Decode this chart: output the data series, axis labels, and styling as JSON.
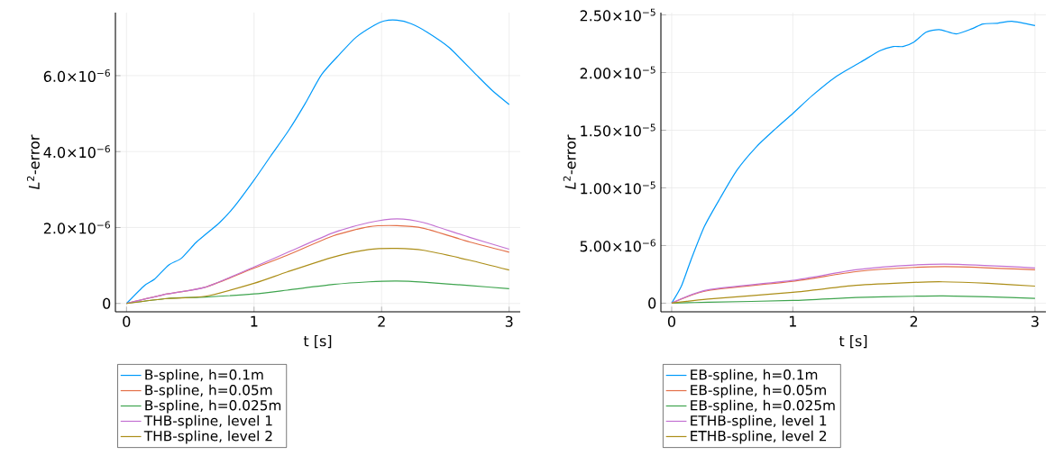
{
  "chart_data": [
    {
      "type": "line",
      "xlabel": "t [s]",
      "ylabel": "*L*$^{2}$-error",
      "xlim": [
        -0.087,
        3.087
      ],
      "ylim": [
        -2.2e-07,
        7.66e-06
      ],
      "xticks": [
        0,
        1,
        2,
        3
      ],
      "yticks": [
        {
          "value": 0,
          "label": "0"
        },
        {
          "value": 2e-06,
          "label": "2.0×10$^{−6}$"
        },
        {
          "value": 4e-06,
          "label": "4.0×10$^{−6}$"
        },
        {
          "value": 6e-06,
          "label": "6.0×10$^{−6}$"
        }
      ],
      "grid": true,
      "legend": "bottom",
      "series": [
        {
          "name": "B-spline, h=0.1m",
          "color": "#009afa",
          "x": [
            0,
            0.14,
            0.22,
            0.33,
            0.43,
            0.54,
            0.62,
            0.73,
            0.84,
            1.0,
            1.13,
            1.27,
            1.4,
            1.53,
            1.67,
            1.8,
            1.94,
            2.02,
            2.12,
            2.23,
            2.36,
            2.53,
            2.74,
            2.87,
            3.0
          ],
          "values": [
            0,
            4.7e-07,
            6.4e-07,
            1.01e-06,
            1.19e-06,
            1.59e-06,
            1.82e-06,
            2.13e-06,
            2.53e-06,
            3.25e-06,
            3.88e-06,
            4.55e-06,
            5.26e-06,
            6.03e-06,
            6.56e-06,
            7.01e-06,
            7.32e-06,
            7.44e-06,
            7.46e-06,
            7.37e-06,
            7.14e-06,
            6.74e-06,
            6.03e-06,
            5.6e-06,
            5.24e-06
          ]
        },
        {
          "name": "B-spline, h=0.05m",
          "color": "#e36f47",
          "x": [
            0,
            0.32,
            0.62,
            1.0,
            1.26,
            1.62,
            1.9,
            2.12,
            2.33,
            2.69,
            3.0
          ],
          "values": [
            0,
            2.5e-07,
            4.3e-07,
            9.3e-07,
            1.27e-06,
            1.78e-06,
            2.02e-06,
            2.05e-06,
            1.98e-06,
            1.62e-06,
            1.35e-06
          ]
        },
        {
          "name": "B-spline, h=0.025m",
          "color": "#3ea44e",
          "x": [
            0,
            0.32,
            0.62,
            1.0,
            1.26,
            1.62,
            1.9,
            2.12,
            2.33,
            2.69,
            3.0
          ],
          "values": [
            0,
            1.3e-07,
            1.7e-07,
            2.5e-07,
            3.5e-07,
            5e-07,
            5.7e-07,
            5.9e-07,
            5.6e-07,
            4.7e-07,
            3.9e-07
          ]
        },
        {
          "name": "THB-spline, level 1",
          "color": "#c371d2",
          "x": [
            0,
            0.32,
            0.62,
            1.0,
            1.26,
            1.62,
            1.9,
            2.12,
            2.33,
            2.69,
            3.0
          ],
          "values": [
            0,
            2.5e-07,
            4.3e-07,
            9.6e-07,
            1.34e-06,
            1.86e-06,
            2.13e-06,
            2.23e-06,
            2.13e-06,
            1.74e-06,
            1.43e-06
          ]
        },
        {
          "name": "THB-spline, level 2",
          "color": "#ac8e18",
          "x": [
            0,
            0.32,
            0.62,
            1.0,
            1.26,
            1.62,
            1.9,
            2.12,
            2.33,
            2.69,
            3.0
          ],
          "values": [
            0,
            1.3e-07,
            1.9e-07,
            5.3e-07,
            8.3e-07,
            1.22e-06,
            1.42e-06,
            1.45e-06,
            1.4e-06,
            1.14e-06,
            8.8e-07
          ]
        }
      ]
    },
    {
      "type": "line",
      "xlabel": "t [s]",
      "ylabel": "*L*$^{2}$-error",
      "xlim": [
        -0.089,
        3.09
      ],
      "ylim": [
        -7.5e-07,
        2.52e-05
      ],
      "xticks": [
        0,
        1,
        2,
        3
      ],
      "yticks": [
        {
          "value": 0,
          "label": "0"
        },
        {
          "value": 5e-06,
          "label": "5.00×10$^{−6}$"
        },
        {
          "value": 1e-05,
          "label": "1.00×10$^{−5}$"
        },
        {
          "value": 1.5e-05,
          "label": "1.50×10$^{−5}$"
        },
        {
          "value": 2e-05,
          "label": "2.00×10$^{−5}$"
        },
        {
          "value": 2.5e-05,
          "label": "2.50×10$^{−5}$"
        }
      ],
      "grid": true,
      "legend": "bottom",
      "series": [
        {
          "name": "EB-spline, h=0.1m",
          "color": "#009afa",
          "x": [
            0,
            0.08,
            0.16,
            0.27,
            0.4,
            0.54,
            0.7,
            0.86,
            1.0,
            1.16,
            1.35,
            1.56,
            1.72,
            1.83,
            1.91,
            2.0,
            2.1,
            2.21,
            2.35,
            2.48,
            2.57,
            2.69,
            2.81,
            3.0
          ],
          "values": [
            0,
            1.47e-06,
            3.77e-06,
            6.65e-06,
            9.1e-06,
            1.155e-05,
            1.357e-05,
            1.515e-05,
            1.645e-05,
            1.8e-05,
            1.96e-05,
            2.09e-05,
            2.19e-05,
            2.226e-05,
            2.226e-05,
            2.264e-05,
            2.35e-05,
            2.373e-05,
            2.336e-05,
            2.38e-05,
            2.422e-05,
            2.428e-05,
            2.445e-05,
            2.408e-05
          ]
        },
        {
          "name": "EB-spline, h=0.05m",
          "color": "#e36f47",
          "x": [
            0,
            0.3,
            1.0,
            1.52,
            2.0,
            2.37,
            3.0
          ],
          "values": [
            0,
            1.09e-06,
            1.9e-06,
            2.73e-06,
            3.1e-06,
            3.15e-06,
            2.89e-06
          ]
        },
        {
          "name": "EB-spline, h=0.025m",
          "color": "#3ea44e",
          "x": [
            0,
            0.3,
            1.0,
            1.52,
            2.0,
            2.24,
            2.61,
            3.0
          ],
          "values": [
            0,
            8e-08,
            2.3e-07,
            4.9e-07,
            6e-07,
            6.3e-07,
            5.5e-07,
            4.2e-07
          ]
        },
        {
          "name": "ETHB-spline, level 1",
          "color": "#c371d2",
          "x": [
            0,
            0.3,
            1.0,
            1.52,
            2.0,
            2.37,
            3.0
          ],
          "values": [
            0,
            1.15e-06,
            1.98e-06,
            2.89e-06,
            3.31e-06,
            3.36e-06,
            3.05e-06
          ]
        },
        {
          "name": "ETHB-spline, level 2",
          "color": "#ac8e18",
          "x": [
            0,
            0.3,
            1.0,
            1.52,
            2.0,
            2.24,
            2.61,
            3.0
          ],
          "values": [
            0,
            3.6e-07,
            9.4e-07,
            1.54e-06,
            1.8e-06,
            1.85e-06,
            1.72e-06,
            1.48e-06
          ]
        }
      ]
    }
  ]
}
